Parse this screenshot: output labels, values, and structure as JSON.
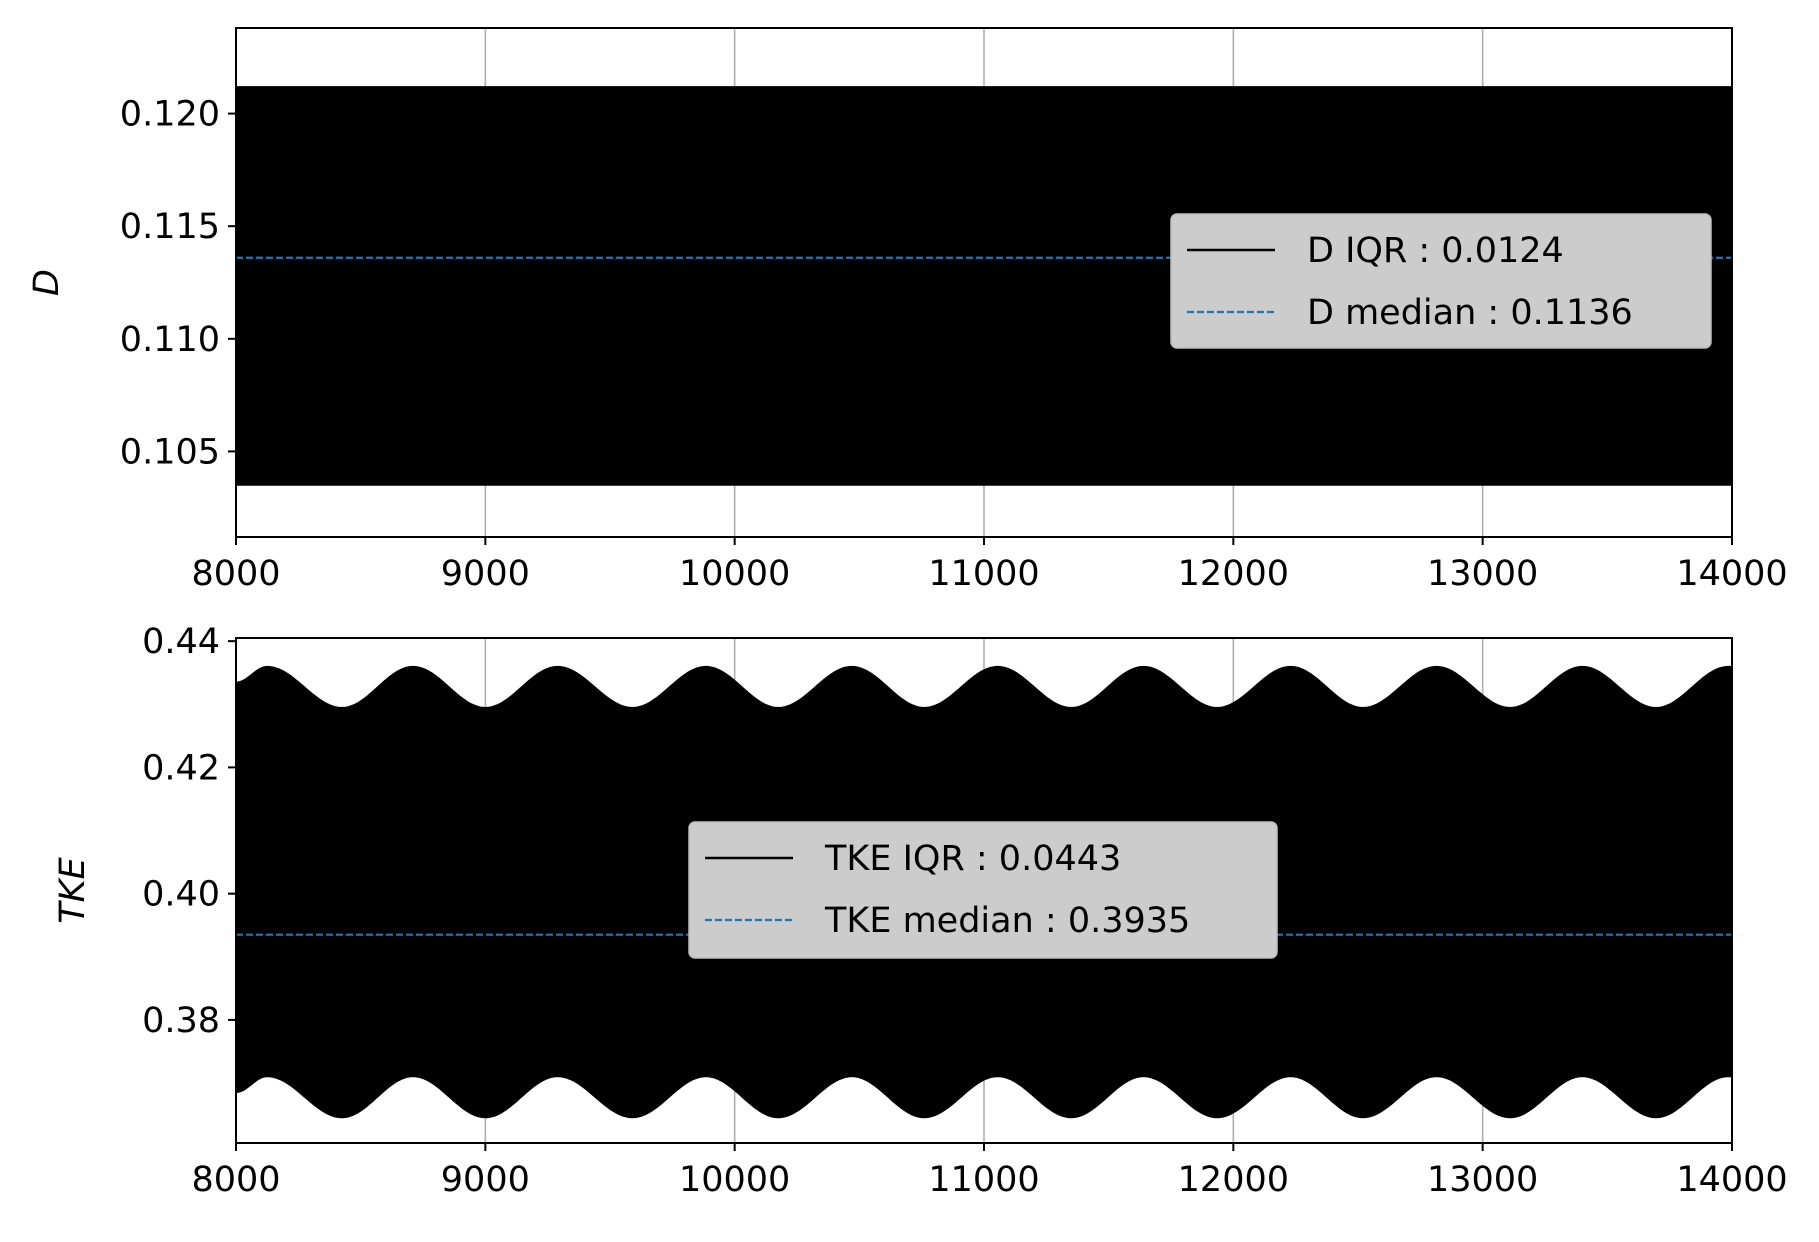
{
  "chart_data": [
    {
      "type": "area",
      "title": "",
      "xlabel": "",
      "ylabel": "D",
      "xlim": [
        8000,
        14000
      ],
      "ylim": [
        0.1012,
        0.1238
      ],
      "xticks": [
        8000,
        9000,
        10000,
        11000,
        12000,
        13000,
        14000
      ],
      "xtick_labels": [
        "8000",
        "9000",
        "10000",
        "11000",
        "12000",
        "13000",
        "14000"
      ],
      "yticks": [
        0.105,
        0.11,
        0.115,
        0.12
      ],
      "ytick_labels": [
        "0.105",
        "0.110",
        "0.115",
        "0.120"
      ],
      "grid": "x",
      "legend": "center-right",
      "series": [
        {
          "name": "D IQR : 0.0124",
          "style": "solid",
          "color": "#000000",
          "envelope": {
            "x": [
              8000,
              14000
            ],
            "upper": [
              0.1212,
              0.1212
            ],
            "lower": [
              0.1035,
              0.1035
            ]
          }
        },
        {
          "name": "D median : 0.1136",
          "style": "dashed",
          "color": "#1f77b4",
          "x": [
            8000,
            14000
          ],
          "y": [
            0.1136,
            0.1136
          ]
        }
      ]
    },
    {
      "type": "area",
      "title": "",
      "xlabel": "",
      "ylabel": "TKE",
      "xlim": [
        8000,
        14000
      ],
      "ylim": [
        0.3605,
        0.4405
      ],
      "xticks": [
        8000,
        9000,
        10000,
        11000,
        12000,
        13000,
        14000
      ],
      "xtick_labels": [
        "8000",
        "9000",
        "10000",
        "11000",
        "12000",
        "13000",
        "14000"
      ],
      "yticks": [
        0.38,
        0.4,
        0.42,
        0.44
      ],
      "ytick_labels": [
        "0.38",
        "0.40",
        "0.42",
        "0.44"
      ],
      "grid": "x",
      "legend": "center",
      "series": [
        {
          "name": "TKE IQR : 0.0443",
          "style": "solid",
          "color": "#000000",
          "envelope": {
            "x": [
              8000,
              8125,
              8425,
              8710,
              9000,
              9290,
              9590,
              9885,
              10175,
              10470,
              10760,
              11055,
              11350,
              11640,
              11935,
              12230,
              12520,
              12815,
              13110,
              13400,
              13695,
              13985,
              14000
            ],
            "upper": [
              0.4335,
              0.436,
              0.4295,
              0.436,
              0.4295,
              0.436,
              0.4295,
              0.436,
              0.4295,
              0.436,
              0.4295,
              0.436,
              0.4295,
              0.436,
              0.4295,
              0.436,
              0.4295,
              0.436,
              0.4295,
              0.436,
              0.4295,
              0.436,
              0.436
            ],
            "lower": [
              0.3685,
              0.371,
              0.3645,
              0.371,
              0.3645,
              0.371,
              0.3645,
              0.371,
              0.3645,
              0.371,
              0.3645,
              0.371,
              0.3645,
              0.371,
              0.3645,
              0.371,
              0.3645,
              0.371,
              0.3645,
              0.371,
              0.3645,
              0.371,
              0.371
            ]
          }
        },
        {
          "name": "TKE median : 0.3935",
          "style": "dashed",
          "color": "#1f77b4",
          "x": [
            8000,
            14000
          ],
          "y": [
            0.3935,
            0.3935
          ]
        }
      ]
    }
  ]
}
